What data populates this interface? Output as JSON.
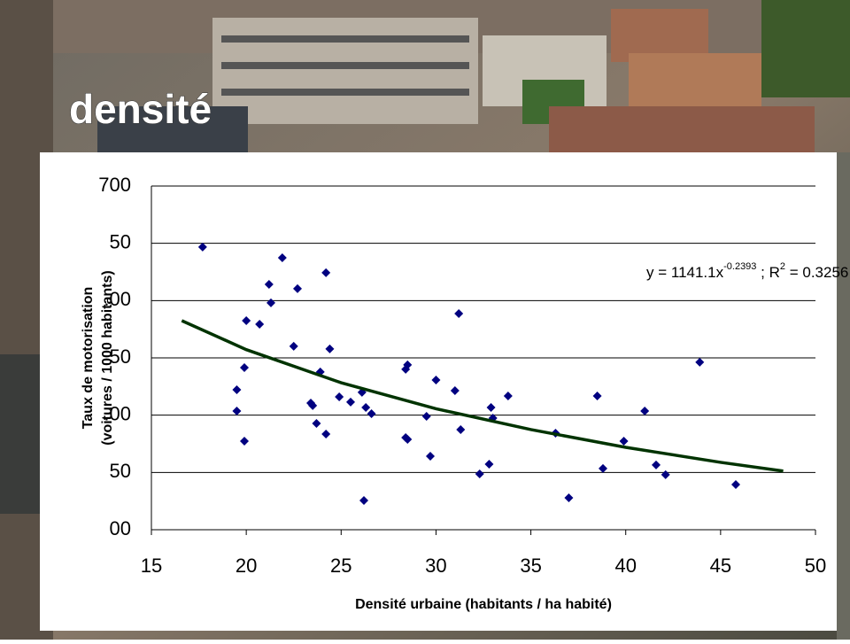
{
  "title": "densité",
  "chart_data": {
    "type": "scatter",
    "xlabel": "Densité urbaine (habitants / ha habité)",
    "ylabel": [
      "Taux de motorisation",
      "(voitures / 1000 habitants)"
    ],
    "xlim": [
      15,
      50
    ],
    "xticks": [
      15,
      20,
      25,
      30,
      35,
      40,
      45,
      50
    ],
    "ylim": [
      400,
      700
    ],
    "yticks": [
      {
        "value": 400,
        "label": "00"
      },
      {
        "value": 450,
        "label": "50"
      },
      {
        "value": 500,
        "label": ".00"
      },
      {
        "value": 550,
        "label": "50"
      },
      {
        "value": 600,
        "label": ".00"
      },
      {
        "value": 650,
        "label": "50"
      },
      700
    ],
    "grid": true,
    "annotation": [
      "y = 1141.1x",
      "-0.2393",
      " ; R",
      "2",
      " = 0.3256"
    ],
    "series": [
      {
        "color": "#000080",
        "x": [
          17.7,
          21.9,
          24.2,
          21.2,
          22.7,
          21.3,
          20.0,
          20.7,
          31.2,
          22.5,
          24.4,
          19.9,
          23.9,
          28.5,
          28.4,
          19.5,
          30.0,
          26.1,
          31.0,
          23.4,
          23.5,
          24.9,
          25.5,
          26.3,
          26.6,
          19.5,
          29.5,
          32.9,
          33.0,
          33.8,
          38.5,
          41.0,
          23.7,
          24.2,
          31.3,
          19.9,
          28.4,
          28.5,
          29.7,
          36.3,
          39.9,
          32.8,
          32.3,
          38.8,
          41.6,
          42.1,
          37.0,
          26.2,
          45.8,
          43.9
        ],
        "values": [
          646.7,
          637.4,
          624.3,
          614.2,
          610.4,
          598.0,
          582.5,
          579.4,
          588.7,
          560.1,
          557.8,
          541.5,
          537.7,
          543.9,
          540.0,
          522.2,
          530.7,
          519.9,
          521.4,
          510.6,
          508.3,
          516.0,
          511.4,
          506.7,
          501.3,
          503.6,
          499.0,
          506.7,
          497.4,
          516.8,
          516.8,
          503.6,
          492.8,
          483.5,
          487.4,
          477.3,
          480.4,
          478.9,
          464.2,
          484.3,
          477.3,
          457.2,
          448.7,
          453.4,
          456.5,
          448.0,
          427.8,
          425.5,
          439.4,
          546.2
        ]
      }
    ],
    "trendline": {
      "color": "#003300",
      "x": [
        16.6,
        20,
        25,
        30,
        35,
        40,
        45,
        48.3
      ],
      "values": [
        582.5,
        557.2,
        528.3,
        505.6,
        487.4,
        471.9,
        458.8,
        451.2
      ]
    }
  }
}
